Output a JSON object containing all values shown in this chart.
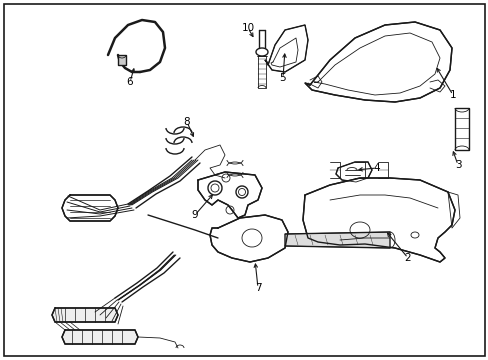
{
  "background_color": "#ffffff",
  "border_color": "#000000",
  "line_color": "#1a1a1a",
  "text_color": "#000000",
  "figsize": [
    4.89,
    3.6
  ],
  "dpi": 100,
  "lw_thin": 0.6,
  "lw_med": 1.0,
  "lw_thick": 1.8,
  "lw_wire": 1.4,
  "font_size": 7.5
}
